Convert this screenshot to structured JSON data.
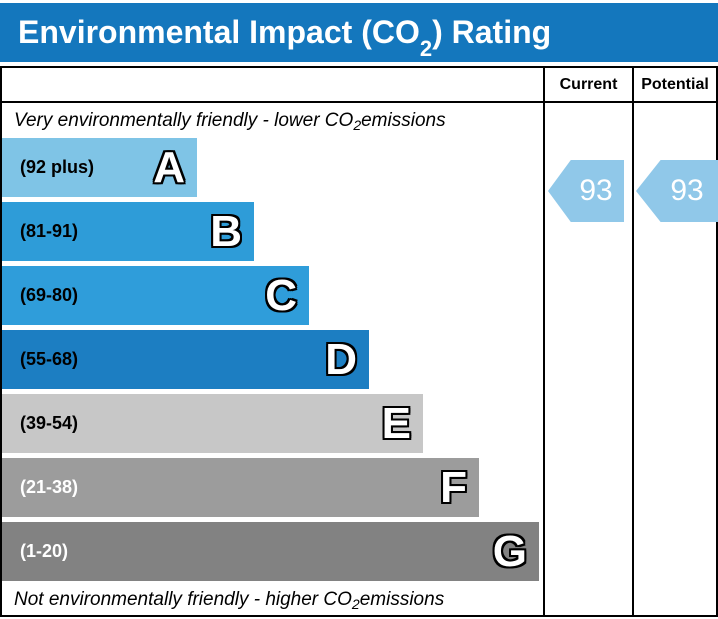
{
  "header": {
    "title_prefix": "Environmental Impact (CO",
    "title_sub": "2",
    "title_suffix": ") Rating",
    "bg_color": "#1477bd"
  },
  "table": {
    "col_current": "Current",
    "col_potential": "Potential",
    "top_note": {
      "prefix": "Very environmentally friendly - lower CO",
      "sub": "2",
      "suffix": " emissions"
    },
    "bottom_note": {
      "prefix": "Not environmentally friendly - higher CO",
      "sub": "2",
      "suffix": " emissions"
    }
  },
  "chart_data": {
    "type": "bar",
    "title": "Environmental Impact (CO2) Rating",
    "categories": [
      "A",
      "B",
      "C",
      "D",
      "E",
      "F",
      "G"
    ],
    "bands": [
      {
        "letter": "A",
        "range_label": "(92 plus)",
        "range_min": 92,
        "range_max": 100,
        "color": "#7fc4e6",
        "label_color": "#000000",
        "width_px": "195px"
      },
      {
        "letter": "B",
        "range_label": "(81-91)",
        "range_min": 81,
        "range_max": 91,
        "color": "#2e9cd8",
        "label_color": "#000000",
        "width_px": "252px"
      },
      {
        "letter": "C",
        "range_label": "(69-80)",
        "range_min": 69,
        "range_max": 80,
        "color": "#2f9dda",
        "label_color": "#000000",
        "width_px": "307px"
      },
      {
        "letter": "D",
        "range_label": "(55-68)",
        "range_min": 55,
        "range_max": 68,
        "color": "#1c7ec2",
        "label_color": "#000000",
        "width_px": "367px"
      },
      {
        "letter": "E",
        "range_label": "(39-54)",
        "range_min": 39,
        "range_max": 54,
        "color": "#c7c7c7",
        "label_color": "#000000",
        "width_px": "421px"
      },
      {
        "letter": "F",
        "range_label": "(21-38)",
        "range_min": 21,
        "range_max": 38,
        "color": "#9c9c9c",
        "label_color": "#ffffff",
        "width_px": "477px"
      },
      {
        "letter": "G",
        "range_label": "(1-20)",
        "range_min": 1,
        "range_max": 20,
        "color": "#828282",
        "label_color": "#ffffff",
        "width_px": "537px"
      }
    ],
    "current": {
      "value": "93",
      "band": "A",
      "arrow_color": "#90c8e9"
    },
    "potential": {
      "value": "93",
      "band": "A",
      "arrow_color": "#90c8e9"
    }
  }
}
